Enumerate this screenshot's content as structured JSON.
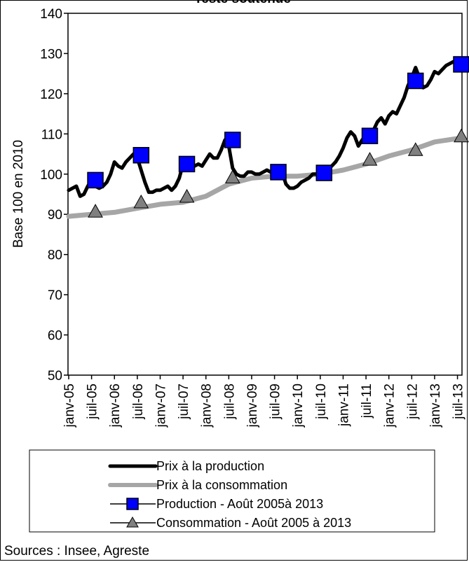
{
  "chart_data": {
    "type": "line",
    "title": "Teste soutenue",
    "ylabel": "Base 100 en 2010",
    "xlabel": "",
    "ylim": [
      50,
      140
    ],
    "yticks": [
      50,
      60,
      70,
      80,
      90,
      100,
      110,
      120,
      130,
      140
    ],
    "x_start": "2005-01",
    "x_end": "2013-08",
    "x_tick_labels": [
      "janv-05",
      "juil-05",
      "janv-06",
      "juil-06",
      "janv-07",
      "juil-07",
      "janv-08",
      "juil-08",
      "janv-09",
      "juil-09",
      "janv-10",
      "juil-10",
      "janv-11",
      "juil-11",
      "janv-12",
      "juil-12",
      "janv-13",
      "juil-13"
    ],
    "grid": false,
    "legend_position": "bottom",
    "series": [
      {
        "name": "Prix à la production",
        "color": "#000000",
        "style": "line",
        "x": [
          "2005-01",
          "2005-02",
          "2005-03",
          "2005-04",
          "2005-05",
          "2005-06",
          "2005-07",
          "2005-08",
          "2005-09",
          "2005-10",
          "2005-11",
          "2005-12",
          "2006-01",
          "2006-02",
          "2006-03",
          "2006-04",
          "2006-05",
          "2006-06",
          "2006-07",
          "2006-08",
          "2006-09",
          "2006-10",
          "2006-11",
          "2006-12",
          "2007-01",
          "2007-02",
          "2007-03",
          "2007-04",
          "2007-05",
          "2007-06",
          "2007-07",
          "2007-08",
          "2007-09",
          "2007-10",
          "2007-11",
          "2007-12",
          "2008-01",
          "2008-02",
          "2008-03",
          "2008-04",
          "2008-05",
          "2008-06",
          "2008-07",
          "2008-08",
          "2008-09",
          "2008-10",
          "2008-11",
          "2008-12",
          "2009-01",
          "2009-02",
          "2009-03",
          "2009-04",
          "2009-05",
          "2009-06",
          "2009-07",
          "2009-08",
          "2009-09",
          "2009-10",
          "2009-11",
          "2009-12",
          "2010-01",
          "2010-02",
          "2010-03",
          "2010-04",
          "2010-05",
          "2010-06",
          "2010-07",
          "2010-08",
          "2010-09",
          "2010-10",
          "2010-11",
          "2010-12",
          "2011-01",
          "2011-02",
          "2011-03",
          "2011-04",
          "2011-05",
          "2011-06",
          "2011-07",
          "2011-08",
          "2011-09",
          "2011-10",
          "2011-11",
          "2011-12",
          "2012-01",
          "2012-02",
          "2012-03",
          "2012-04",
          "2012-05",
          "2012-06",
          "2012-07",
          "2012-08",
          "2012-09",
          "2012-10",
          "2012-11",
          "2012-12",
          "2013-01",
          "2013-02",
          "2013-03",
          "2013-04",
          "2013-05",
          "2013-06",
          "2013-07",
          "2013-08"
        ],
        "values": [
          96,
          96.5,
          97,
          94.5,
          95,
          97,
          98.5,
          97,
          96.5,
          97,
          98,
          100,
          103,
          102,
          101.5,
          103,
          104,
          105,
          104,
          101,
          98,
          95.5,
          95.5,
          96,
          96,
          96.5,
          97,
          96,
          97,
          99,
          102.5,
          103,
          102,
          102,
          102.5,
          102,
          103.5,
          105,
          104,
          104,
          106,
          108.5,
          107,
          101.5,
          100,
          99.5,
          99.5,
          100.5,
          100.5,
          100,
          100,
          100.5,
          101,
          100.5,
          100.5,
          100.5,
          100.5,
          97.5,
          96.5,
          96.5,
          97,
          98,
          98.5,
          99,
          100,
          100,
          100.5,
          100.5,
          101.5,
          102,
          103,
          104.5,
          106.5,
          109,
          110.5,
          109.5,
          107,
          108.5,
          109.5,
          110,
          111,
          113,
          114,
          112.5,
          114.5,
          115.5,
          115,
          117,
          119,
          122,
          124,
          126.5,
          124,
          121.5,
          122,
          123.5,
          125.5,
          125,
          126,
          127,
          127.5,
          128,
          128,
          127.5
        ]
      },
      {
        "name": "Prix à la consommation",
        "color": "#a6a6a6",
        "style": "line",
        "x": [
          "2005-01",
          "2005-07",
          "2006-01",
          "2006-07",
          "2007-01",
          "2007-07",
          "2008-01",
          "2008-07",
          "2009-01",
          "2009-07",
          "2010-01",
          "2010-07",
          "2011-01",
          "2011-07",
          "2012-01",
          "2012-07",
          "2013-01",
          "2013-08"
        ],
        "values": [
          89.5,
          90,
          90.5,
          91.5,
          92.5,
          93,
          94.5,
          97.5,
          99,
          99.5,
          99.5,
          100,
          101,
          102.5,
          104.5,
          106,
          108,
          109
        ]
      },
      {
        "name": "Production - Août 2005à 2013",
        "color": "#0000ff",
        "marker": "square",
        "x": [
          "2005-08",
          "2006-08",
          "2007-08",
          "2008-08",
          "2009-08",
          "2010-08",
          "2011-08",
          "2012-08",
          "2013-08"
        ],
        "values": [
          98.5,
          104.7,
          102.5,
          108.5,
          100.5,
          100.3,
          109.5,
          123.2,
          127.3
        ]
      },
      {
        "name": "Consommation - Août 2005 à 2013",
        "color": "#808080",
        "marker": "triangle",
        "x": [
          "2005-08",
          "2006-08",
          "2007-08",
          "2008-08",
          "2009-08",
          "2010-08",
          "2011-08",
          "2012-08",
          "2013-08"
        ],
        "values": [
          90.7,
          93,
          94.4,
          99.2,
          100,
          100,
          103.6,
          106,
          109.4
        ]
      }
    ],
    "source_note": "Sources : Insee, Agreste"
  }
}
